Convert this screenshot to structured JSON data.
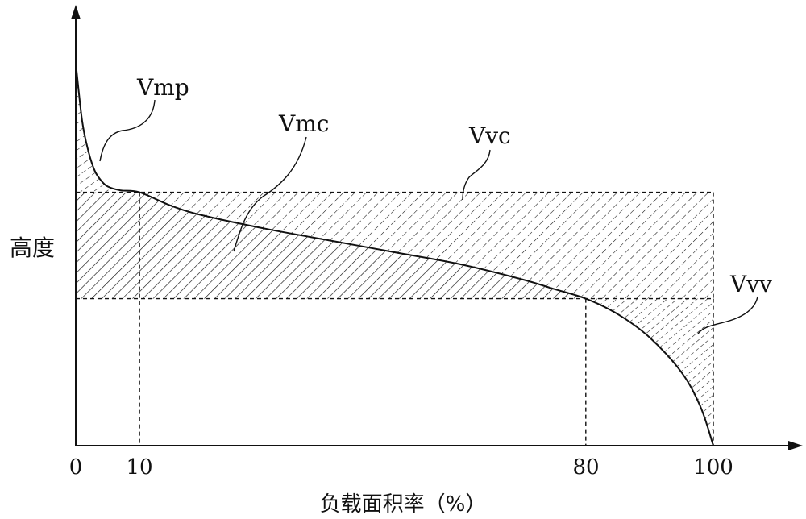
{
  "chart_data": {
    "type": "area",
    "xlabel": "负载面积率（%）",
    "ylabel": "高度",
    "x_ticks": [
      "0",
      "10",
      "80",
      "100"
    ],
    "x_tick_values": [
      0,
      10,
      80,
      100
    ],
    "xlim": [
      0,
      100
    ],
    "regions": [
      {
        "name": "Vmp",
        "label": "Vmp"
      },
      {
        "name": "Vmc",
        "label": "Vmc"
      },
      {
        "name": "Vvc",
        "label": "Vvc"
      },
      {
        "name": "Vvv",
        "label": "Vvv"
      }
    ],
    "curve": [
      [
        0,
        0.99
      ],
      [
        1,
        0.84
      ],
      [
        2,
        0.76
      ],
      [
        3,
        0.71
      ],
      [
        4,
        0.685
      ],
      [
        5,
        0.67
      ],
      [
        7,
        0.66
      ],
      [
        10,
        0.655
      ],
      [
        15,
        0.62
      ],
      [
        20,
        0.595
      ],
      [
        30,
        0.56
      ],
      [
        40,
        0.53
      ],
      [
        50,
        0.5
      ],
      [
        60,
        0.47
      ],
      [
        70,
        0.43
      ],
      [
        75,
        0.405
      ],
      [
        80,
        0.38
      ],
      [
        85,
        0.34
      ],
      [
        90,
        0.28
      ],
      [
        95,
        0.19
      ],
      [
        98,
        0.1
      ],
      [
        100,
        0
      ]
    ],
    "band_upper_at_x": 10,
    "band_lower_at_x": 80,
    "colors": {
      "ink": "#111111",
      "background": "#ffffff"
    }
  }
}
